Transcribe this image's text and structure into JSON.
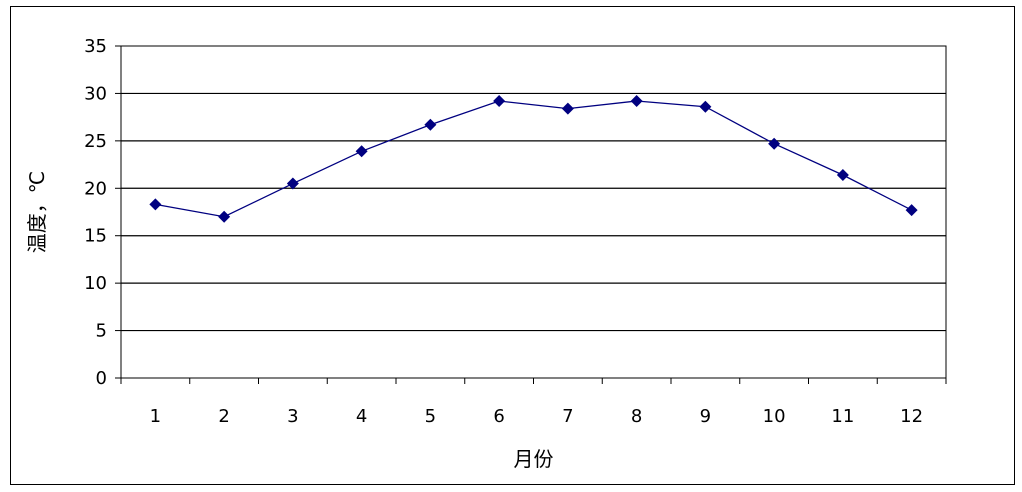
{
  "chart_data": {
    "type": "line",
    "title": "",
    "xlabel": "月份",
    "ylabel": "温度，℃",
    "categories": [
      "1",
      "2",
      "3",
      "4",
      "5",
      "6",
      "7",
      "8",
      "9",
      "10",
      "11",
      "12"
    ],
    "series": [
      {
        "values": [
          18.3,
          17.0,
          20.5,
          23.9,
          26.7,
          29.2,
          28.4,
          29.2,
          28.6,
          24.7,
          21.4,
          17.7
        ],
        "color": "#000080",
        "marker": "diamond"
      }
    ],
    "ylim": [
      0,
      35
    ],
    "yticks": [
      "0",
      "5",
      "10",
      "15",
      "20",
      "25",
      "30",
      "35"
    ],
    "grid": "horizontal",
    "legend": "none"
  }
}
